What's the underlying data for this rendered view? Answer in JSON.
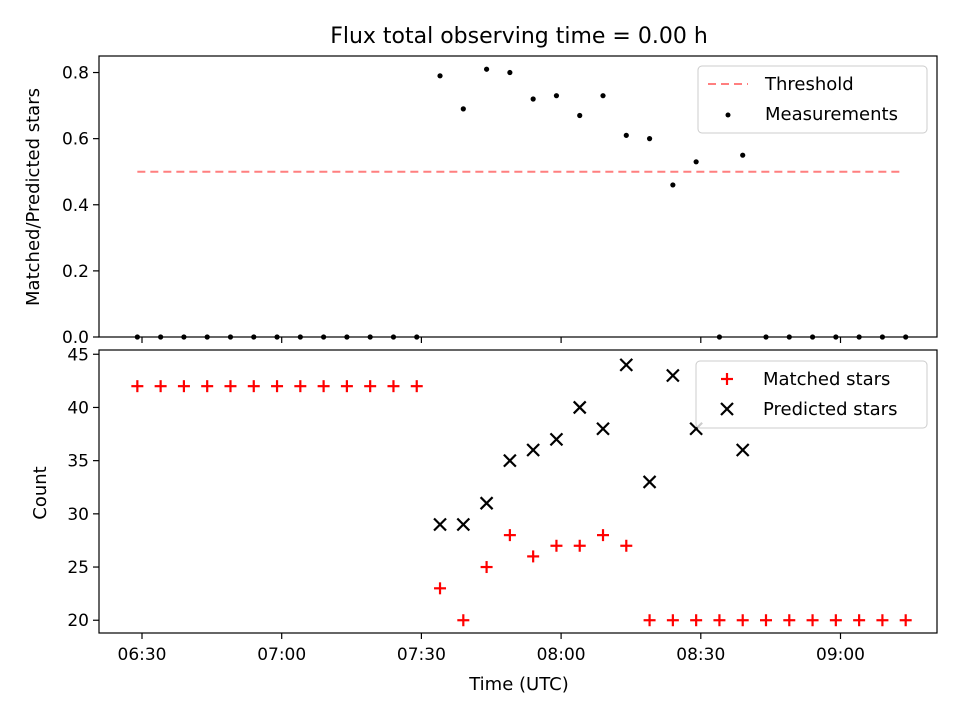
{
  "title": "Flux total observing time = 0.00 h",
  "chart_data": [
    {
      "type": "scatter",
      "ylabel": "Matched/Predicted stars",
      "ylim": [
        0,
        0.85
      ],
      "yticks": [
        0.0,
        0.2,
        0.4,
        0.6,
        0.8
      ],
      "ytick_labels": [
        "0.0",
        "0.2",
        "0.4",
        "0.6",
        "0.8"
      ],
      "legend_position": "top-right",
      "threshold": {
        "name": "Threshold",
        "value": 0.5,
        "x_start": "06:29",
        "x_end": "09:13",
        "color": "#ff7f7f"
      },
      "series": [
        {
          "name": "Measurements",
          "color": "#000000",
          "marker": "dot",
          "x": [
            "06:29",
            "06:34",
            "06:39",
            "06:44",
            "06:49",
            "06:54",
            "06:59",
            "07:04",
            "07:09",
            "07:14",
            "07:19",
            "07:24",
            "07:29",
            "07:34",
            "07:39",
            "07:44",
            "07:49",
            "07:54",
            "07:59",
            "08:04",
            "08:09",
            "08:14",
            "08:19",
            "08:24",
            "08:29",
            "08:34",
            "08:39",
            "08:44",
            "08:49",
            "08:54",
            "08:59",
            "09:04",
            "09:09",
            "09:14"
          ],
          "y": [
            0,
            0,
            0,
            0,
            0,
            0,
            0,
            0,
            0,
            0,
            0,
            0,
            0,
            0.79,
            0.69,
            0.81,
            0.8,
            0.72,
            0.73,
            0.67,
            0.73,
            0.61,
            0.6,
            0.46,
            0.53,
            0,
            0.55,
            0,
            0,
            0,
            0,
            0,
            0,
            0
          ]
        }
      ]
    },
    {
      "type": "scatter",
      "xlabel": "Time (UTC)",
      "ylabel": "Count",
      "ylim": [
        18.8,
        45.4
      ],
      "yticks": [
        20,
        25,
        30,
        35,
        40,
        45
      ],
      "ytick_labels": [
        "20",
        "25",
        "30",
        "35",
        "40",
        "45"
      ],
      "xticks": [
        "06:30",
        "07:00",
        "07:30",
        "08:00",
        "08:30",
        "09:00"
      ],
      "xtick_labels": [
        "06:30",
        "07:00",
        "07:30",
        "08:00",
        "08:30",
        "09:00"
      ],
      "legend_position": "top-right",
      "series": [
        {
          "name": "Matched stars",
          "color": "#ff0000",
          "marker": "plus",
          "x": [
            "06:29",
            "06:34",
            "06:39",
            "06:44",
            "06:49",
            "06:54",
            "06:59",
            "07:04",
            "07:09",
            "07:14",
            "07:19",
            "07:24",
            "07:29",
            "07:34",
            "07:39",
            "07:44",
            "07:49",
            "07:54",
            "07:59",
            "08:04",
            "08:09",
            "08:14",
            "08:19",
            "08:24",
            "08:29",
            "08:34",
            "08:39",
            "08:44",
            "08:49",
            "08:54",
            "08:59",
            "09:04",
            "09:09",
            "09:14"
          ],
          "y": [
            42,
            42,
            42,
            42,
            42,
            42,
            42,
            42,
            42,
            42,
            42,
            42,
            42,
            23,
            20,
            25,
            28,
            26,
            27,
            27,
            28,
            27,
            20,
            20,
            20,
            20,
            20,
            20,
            20,
            20,
            20,
            20,
            20,
            20
          ]
        },
        {
          "name": "Predicted stars",
          "color": "#000000",
          "marker": "x",
          "x": [
            "07:34",
            "07:39",
            "07:44",
            "07:49",
            "07:54",
            "07:59",
            "08:04",
            "08:09",
            "08:14",
            "08:19",
            "08:24",
            "08:29",
            "08:39"
          ],
          "y": [
            29,
            29,
            31,
            35,
            36,
            37,
            40,
            38,
            44,
            33,
            43,
            38,
            36
          ]
        }
      ]
    }
  ]
}
